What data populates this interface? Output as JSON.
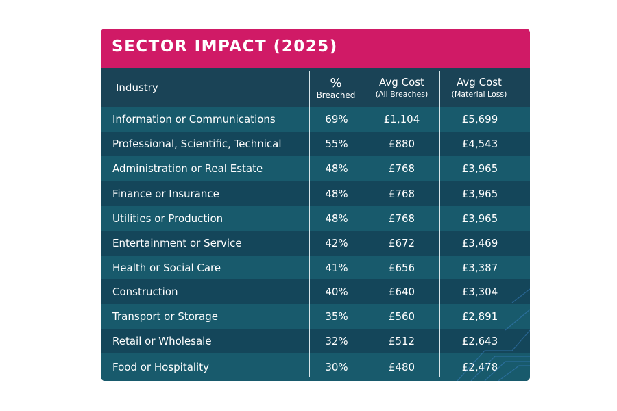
{
  "title": "SECTOR IMPACT (2025)",
  "columns": [
    {
      "main": "Industry",
      "sub": ""
    },
    {
      "main": "%",
      "sub": "Breached"
    },
    {
      "main": "Avg Cost",
      "sub": "(All Breaches)"
    },
    {
      "main": "Avg Cost",
      "sub": "(Material Loss)"
    }
  ],
  "colors": {
    "title_bar": "#d01a66",
    "row_light": "#185a6c",
    "row_dark": "#14465a",
    "header": "#1a4356",
    "text": "#ffffff"
  },
  "chart_data": {
    "type": "table",
    "title": "SECTOR IMPACT (2025)",
    "headers": [
      "Industry",
      "% Breached",
      "Avg Cost (All Breaches)",
      "Avg Cost (Material Loss)"
    ],
    "rows": [
      {
        "industry": "Information or Communications",
        "breached": "69%",
        "avg_all": "£1,104",
        "avg_material": "£5,699"
      },
      {
        "industry": "Professional, Scientific, Technical",
        "breached": "55%",
        "avg_all": "£880",
        "avg_material": "£4,543"
      },
      {
        "industry": "Administration or Real Estate",
        "breached": "48%",
        "avg_all": "£768",
        "avg_material": "£3,965"
      },
      {
        "industry": "Finance or Insurance",
        "breached": "48%",
        "avg_all": "£768",
        "avg_material": "£3,965"
      },
      {
        "industry": "Utilities or Production",
        "breached": "48%",
        "avg_all": "£768",
        "avg_material": "£3,965"
      },
      {
        "industry": "Entertainment or Service",
        "breached": "42%",
        "avg_all": "£672",
        "avg_material": "£3,469"
      },
      {
        "industry": "Health or Social Care",
        "breached": "41%",
        "avg_all": "£656",
        "avg_material": "£3,387"
      },
      {
        "industry": "Construction",
        "breached": "40%",
        "avg_all": "£640",
        "avg_material": "£3,304"
      },
      {
        "industry": "Transport or Storage",
        "breached": "35%",
        "avg_all": "£560",
        "avg_material": "£2,891"
      },
      {
        "industry": "Retail or Wholesale",
        "breached": "32%",
        "avg_all": "£512",
        "avg_material": "£2,643"
      },
      {
        "industry": "Food or Hospitality",
        "breached": "30%",
        "avg_all": "£480",
        "avg_material": "£2,478"
      }
    ]
  }
}
